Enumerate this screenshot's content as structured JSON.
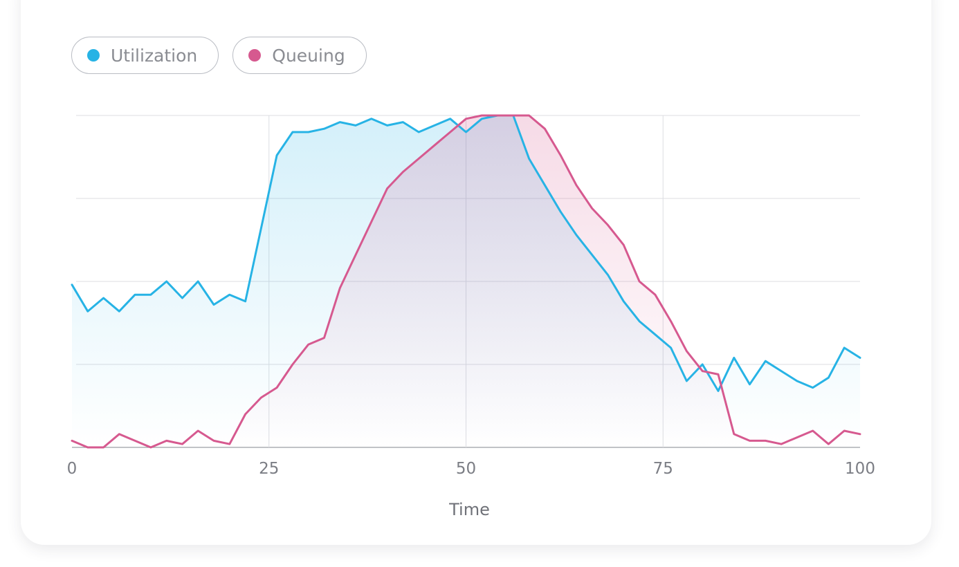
{
  "legend": {
    "items": [
      {
        "label": "Utilization",
        "color": "#27b3e5"
      },
      {
        "label": "Queuing",
        "color": "#d6598f"
      }
    ]
  },
  "chart_data": {
    "type": "area",
    "title": "",
    "xlabel": "Time",
    "ylabel": "",
    "xlim": [
      0,
      100
    ],
    "ylim": [
      0,
      100
    ],
    "x_ticks": [
      "0",
      "25",
      "50",
      "75",
      "100"
    ],
    "y_gridlines": 5,
    "grid": true,
    "legend_position": "top-left",
    "series": [
      {
        "name": "Utilization",
        "color": "#27b3e5",
        "x": [
          0,
          2,
          4,
          6,
          8,
          10,
          12,
          14,
          16,
          18,
          20,
          22,
          26,
          28,
          30,
          32,
          34,
          36,
          38,
          40,
          42,
          44,
          46,
          48,
          50,
          52,
          54,
          56,
          58,
          60,
          62,
          64,
          66,
          68,
          70,
          72,
          74,
          76,
          78,
          80,
          82,
          84,
          86,
          88,
          90,
          92,
          94,
          96,
          98,
          100
        ],
        "y": [
          49,
          41,
          45,
          41,
          46,
          46,
          50,
          45,
          50,
          43,
          46,
          44,
          88,
          95,
          95,
          96,
          98,
          97,
          99,
          97,
          98,
          95,
          97,
          99,
          95,
          99,
          100,
          100,
          87,
          79,
          71,
          64,
          58,
          52,
          44,
          38,
          34,
          30,
          20,
          25,
          17,
          27,
          19,
          26,
          23,
          20,
          18,
          21,
          30,
          27
        ]
      },
      {
        "name": "Queuing",
        "color": "#d6598f",
        "x": [
          0,
          2,
          4,
          6,
          8,
          10,
          12,
          14,
          16,
          18,
          20,
          22,
          24,
          26,
          28,
          30,
          32,
          34,
          36,
          38,
          40,
          42,
          44,
          46,
          48,
          50,
          52,
          54,
          56,
          58,
          60,
          62,
          64,
          66,
          68,
          70,
          72,
          74,
          76,
          78,
          80,
          82,
          84,
          86,
          88,
          90,
          92,
          94,
          96,
          98,
          100
        ],
        "y": [
          2,
          0,
          0,
          4,
          2,
          0,
          2,
          1,
          5,
          2,
          1,
          10,
          15,
          18,
          25,
          31,
          33,
          48,
          58,
          68,
          78,
          83,
          87,
          91,
          95,
          99,
          100,
          100,
          100,
          100,
          96,
          88,
          79,
          72,
          67,
          61,
          50,
          46,
          38,
          29,
          23,
          22,
          4,
          2,
          2,
          1,
          3,
          5,
          1,
          5,
          4
        ]
      }
    ]
  }
}
